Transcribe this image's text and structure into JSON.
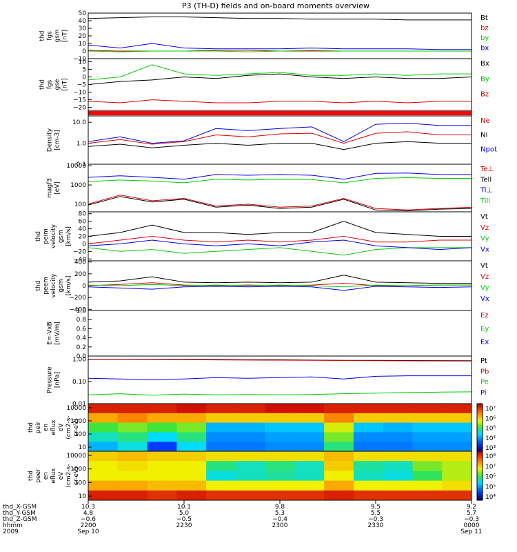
{
  "title": "P3 (TH-D) fields and on-board moments overview",
  "colors": {
    "black": "#000000",
    "red": "#dd0000",
    "green": "#00cc00",
    "blue": "#0000ee"
  },
  "chart_data": [
    {
      "type": "line",
      "ylabel": [
        "thd",
        "fgs",
        "gsm",
        "[nT]"
      ],
      "yticks": [
        "50",
        "40",
        "30",
        "20",
        "10",
        "0",
        "−10"
      ],
      "ylim": [
        -10,
        50
      ],
      "series": [
        {
          "name": "Bt",
          "color": "#000000",
          "values": [
            43,
            44,
            45,
            45,
            44,
            43,
            43,
            42,
            42,
            42,
            41,
            41,
            41
          ]
        },
        {
          "name": "bz",
          "color": "#dd0000",
          "values": [
            1,
            0,
            0,
            0,
            1,
            1,
            0,
            0,
            0,
            0,
            0,
            0,
            0
          ]
        },
        {
          "name": "by",
          "color": "#00cc00",
          "values": [
            0,
            -1,
            0,
            0,
            0,
            -1,
            0,
            1,
            0,
            0,
            0,
            0,
            0
          ]
        },
        {
          "name": "bx",
          "color": "#0000ee",
          "values": [
            8,
            4,
            10,
            4,
            3,
            3,
            3,
            4,
            3,
            3,
            3,
            2,
            2
          ]
        }
      ]
    },
    {
      "type": "line",
      "ylabel": [
        "thd",
        "fgs",
        "gse",
        "[nT]"
      ],
      "yticks": [
        "10",
        "5",
        "0",
        "−5",
        "−10",
        "−15",
        "−20"
      ],
      "ylim": [
        -22,
        12
      ],
      "series": [
        {
          "name": "Bx",
          "color": "#000000",
          "values": [
            -5,
            -3,
            -2,
            0,
            -1,
            1,
            2,
            0,
            -1,
            0,
            -1,
            -1,
            0
          ]
        },
        {
          "name": "By",
          "color": "#00cc00",
          "values": [
            -2,
            0,
            8,
            2,
            1,
            2,
            3,
            1,
            1,
            2,
            1,
            2,
            2
          ]
        },
        {
          "name": "Bz",
          "color": "#dd0000",
          "values": [
            -16,
            -17,
            -15,
            -16,
            -17,
            -17,
            -16,
            -16,
            -17,
            -16,
            -17,
            -16,
            -16
          ]
        }
      ]
    },
    {
      "type": "bar",
      "ylabel": [],
      "series": [
        {
          "name": "",
          "color": "#ff0000",
          "values": [
            1,
            1,
            1,
            1,
            1,
            1,
            1,
            1,
            1,
            1,
            1,
            1,
            1
          ]
        }
      ]
    },
    {
      "type": "line",
      "log": true,
      "ylabel": [
        "Density",
        "[cm-3]"
      ],
      "yticks": [
        "10.0",
        "1.0",
        "0.1"
      ],
      "ylim": [
        0.1,
        20
      ],
      "series": [
        {
          "name": "Ne",
          "color": "#dd0000",
          "values": [
            1.0,
            1.5,
            0.9,
            1.2,
            2.5,
            2.0,
            2.8,
            3.0,
            1.0,
            3.0,
            3.5,
            2.5,
            2.5
          ]
        },
        {
          "name": "Ni",
          "color": "#000000",
          "values": [
            0.7,
            0.9,
            0.6,
            0.8,
            1.0,
            0.8,
            1.0,
            1.0,
            0.5,
            1.0,
            1.2,
            1.0,
            1.0
          ]
        },
        {
          "name": "Npot",
          "color": "#0000ee",
          "values": [
            1.2,
            2.0,
            1.0,
            1.3,
            5.0,
            4.0,
            5.0,
            6.0,
            1.2,
            8.0,
            9.0,
            7.0,
            7.0
          ]
        }
      ]
    },
    {
      "type": "line",
      "log": true,
      "ylabel": [
        "magf3",
        "[eV]"
      ],
      "yticks": [
        "10000",
        "1000",
        "100"
      ],
      "ylim": [
        40,
        12000
      ],
      "series": [
        {
          "name": "Te⊥",
          "color": "#dd0000",
          "values": [
            100,
            300,
            150,
            200,
            80,
            100,
            70,
            80,
            200,
            60,
            50,
            60,
            70
          ]
        },
        {
          "name": "Tell",
          "color": "#000000",
          "values": [
            90,
            250,
            130,
            180,
            70,
            90,
            60,
            70,
            180,
            50,
            45,
            55,
            60
          ]
        },
        {
          "name": "Ti⊥",
          "color": "#0000ee",
          "values": [
            2500,
            3000,
            2500,
            2000,
            3500,
            3200,
            3500,
            3200,
            2000,
            4000,
            4200,
            3500,
            3500
          ]
        },
        {
          "name": "Till",
          "color": "#00cc00",
          "values": [
            1500,
            1800,
            1600,
            1300,
            2000,
            1800,
            2000,
            1900,
            1300,
            2200,
            2400,
            2200,
            2200
          ]
        }
      ]
    },
    {
      "type": "line",
      "ylabel": [
        "thd",
        "peim",
        "velocity",
        "gsm",
        "[km/s]"
      ],
      "yticks": [
        "80",
        "60",
        "40",
        "20",
        "0",
        "−20",
        "−40"
      ],
      "ylim": [
        -45,
        85
      ],
      "series": [
        {
          "name": "Vt",
          "color": "#000000",
          "values": [
            20,
            30,
            50,
            30,
            30,
            25,
            30,
            30,
            60,
            30,
            25,
            20,
            20
          ]
        },
        {
          "name": "Vz",
          "color": "#dd0000",
          "values": [
            0,
            10,
            20,
            10,
            5,
            10,
            5,
            10,
            20,
            5,
            5,
            10,
            10
          ]
        },
        {
          "name": "Vy",
          "color": "#00cc00",
          "values": [
            -10,
            -20,
            -15,
            -25,
            -20,
            -15,
            -10,
            -20,
            -30,
            -15,
            -10,
            -10,
            -10
          ]
        },
        {
          "name": "Vx",
          "color": "#0000ee",
          "values": [
            -5,
            0,
            10,
            0,
            -5,
            0,
            -5,
            5,
            10,
            -5,
            -10,
            -15,
            -10
          ]
        }
      ]
    },
    {
      "type": "line",
      "ylabel": [
        "thd",
        "peem",
        "velocity",
        "gsm",
        "[km/s]"
      ],
      "yticks": [
        "400",
        "200",
        "0",
        "−200",
        "−400"
      ],
      "ylim": [
        -420,
        420
      ],
      "series": [
        {
          "name": "Vt",
          "color": "#000000",
          "values": [
            60,
            80,
            150,
            60,
            50,
            60,
            50,
            60,
            180,
            60,
            50,
            40,
            40
          ]
        },
        {
          "name": "Vz",
          "color": "#dd0000",
          "values": [
            0,
            20,
            50,
            10,
            0,
            10,
            0,
            10,
            40,
            0,
            0,
            10,
            10
          ]
        },
        {
          "name": "Vy",
          "color": "#00cc00",
          "values": [
            10,
            0,
            20,
            0,
            10,
            0,
            10,
            0,
            -20,
            10,
            0,
            10,
            10
          ]
        },
        {
          "name": "Vx",
          "color": "#0000ee",
          "values": [
            -20,
            -40,
            -60,
            -20,
            -10,
            -20,
            -10,
            -20,
            -80,
            -10,
            -20,
            -30,
            -20
          ]
        }
      ]
    },
    {
      "type": "line",
      "ylabel": [
        "E=-VxB",
        "[mV/m]"
      ],
      "yticks": [
        "1.0",
        "0.8",
        "0.6",
        "0.4",
        "0.2",
        "0.0"
      ],
      "ylim": [
        0,
        1
      ],
      "series": [
        {
          "name": "Ez",
          "color": "#dd0000",
          "values": []
        },
        {
          "name": "Ey",
          "color": "#00cc00",
          "values": []
        },
        {
          "name": "Ex",
          "color": "#0000ee",
          "values": []
        }
      ]
    },
    {
      "type": "line",
      "log": true,
      "ylabel": [
        "Pressure",
        "[nPa]"
      ],
      "yticks": [
        "1.00",
        "0.10",
        "0.01"
      ],
      "ylim": [
        0.01,
        1.4
      ],
      "series": [
        {
          "name": "Pt",
          "color": "#000000",
          "values": [
            1.0,
            1.0,
            1.0,
            1.0,
            0.98,
            0.95,
            0.95,
            0.92,
            0.9,
            0.9,
            0.88,
            0.87,
            0.86
          ]
        },
        {
          "name": "Pb",
          "color": "#dd0000",
          "values": [
            0.98,
            0.98,
            0.97,
            0.96,
            0.94,
            0.92,
            0.91,
            0.9,
            0.88,
            0.86,
            0.85,
            0.84,
            0.83
          ]
        },
        {
          "name": "Pe",
          "color": "#00cc00",
          "values": [
            0.025,
            0.028,
            0.024,
            0.027,
            0.025,
            0.026,
            0.025,
            0.026,
            0.028,
            0.03,
            0.032,
            0.033,
            0.034
          ]
        },
        {
          "name": "Pi",
          "color": "#0000ee",
          "values": [
            0.14,
            0.13,
            0.12,
            0.13,
            0.15,
            0.14,
            0.15,
            0.16,
            0.13,
            0.17,
            0.18,
            0.18,
            0.18
          ]
        }
      ]
    },
    {
      "type": "heatmap",
      "ylabel": [
        "thd",
        "peir",
        "en",
        "eflux",
        "eV",
        "(cm2-s-",
        "sr-eV)"
      ],
      "yticks": [
        "10000",
        "1000",
        "100",
        "10"
      ],
      "colorbar_ticks": [
        "10⁷",
        "10⁶",
        "10⁵",
        "10⁴",
        "10³"
      ],
      "color_range_log10": [
        3,
        7
      ],
      "rows_log10": [
        [
          6.8,
          6.8,
          6.8,
          6.9,
          6.8,
          6.8,
          6.9,
          6.9,
          6.8,
          6.8,
          6.8,
          6.8,
          6.8
        ],
        [
          6.0,
          6.2,
          6.0,
          6.0,
          5.8,
          5.8,
          5.8,
          5.8,
          6.2,
          5.8,
          5.8,
          5.8,
          5.8
        ],
        [
          5.0,
          5.2,
          5.0,
          5.2,
          4.2,
          4.2,
          4.3,
          4.3,
          5.5,
          4.3,
          4.2,
          4.3,
          4.3
        ],
        [
          4.6,
          4.8,
          4.4,
          4.8,
          4.0,
          4.0,
          4.1,
          4.1,
          5.2,
          4.0,
          4.0,
          4.1,
          4.1
        ],
        [
          4.2,
          4.5,
          3.6,
          4.4,
          3.9,
          3.9,
          4.0,
          4.0,
          4.8,
          3.9,
          3.9,
          4.0,
          4.0
        ]
      ]
    },
    {
      "type": "heatmap",
      "ylabel": [
        "thd",
        "peer",
        "en",
        "eflux",
        "eV",
        "(cm2-s-",
        "sr-eV)"
      ],
      "yticks": [
        "10000",
        "1000",
        "100",
        "10"
      ],
      "colorbar_ticks": [
        "10⁸",
        "10⁷",
        "10⁶",
        "10⁵",
        "10⁴"
      ],
      "color_range_log10": [
        4,
        8
      ],
      "rows_log10": [
        [
          6.8,
          6.9,
          6.8,
          6.8,
          6.7,
          6.7,
          6.7,
          6.7,
          6.9,
          6.7,
          6.7,
          6.7,
          6.7
        ],
        [
          6.6,
          6.7,
          6.6,
          6.6,
          5.8,
          5.6,
          5.8,
          5.6,
          6.8,
          5.7,
          5.6,
          6.2,
          6.4
        ],
        [
          6.6,
          6.6,
          6.6,
          6.6,
          5.5,
          5.6,
          5.7,
          5.6,
          6.6,
          5.6,
          5.5,
          5.9,
          6.4
        ],
        [
          7.0,
          7.0,
          6.9,
          6.9,
          6.6,
          6.6,
          6.6,
          6.6,
          7.0,
          6.6,
          6.6,
          6.6,
          6.7
        ],
        [
          7.8,
          7.8,
          7.7,
          7.8,
          7.7,
          7.7,
          7.7,
          7.7,
          7.8,
          7.7,
          7.7,
          7.7,
          7.7
        ]
      ]
    }
  ],
  "xaxis": {
    "row_labels": [
      "thd_X-GSM",
      "thd_Y-GSM",
      "thd_Z-GSM",
      "hhmm",
      "2009"
    ],
    "ticks": [
      {
        "values": [
          "10.3",
          "4.8",
          "−0.6",
          "2200",
          "Sep 10"
        ]
      },
      {
        "values": [
          "10.1",
          "5.0",
          "−0.5",
          "2230",
          ""
        ]
      },
      {
        "values": [
          "9.8",
          "5.3",
          "−0.4",
          "2300",
          ""
        ]
      },
      {
        "values": [
          "9.5",
          "5.5",
          "−0.3",
          "2330",
          ""
        ]
      },
      {
        "values": [
          "9.2",
          "5.7",
          "−0.3",
          "0000",
          "Sep 11"
        ]
      }
    ]
  }
}
